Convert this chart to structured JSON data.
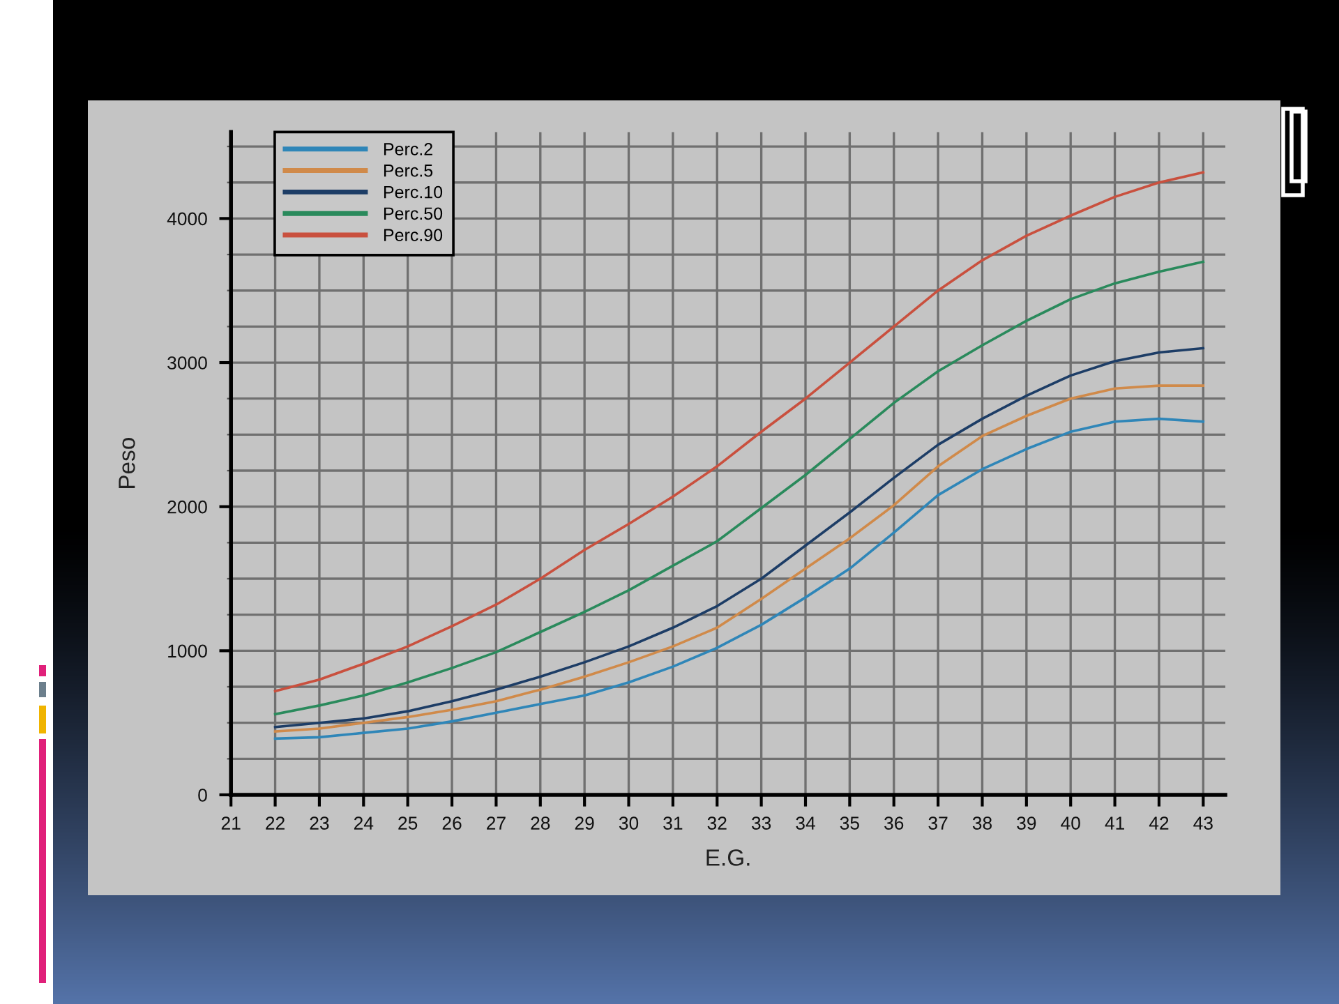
{
  "chart_data": {
    "type": "line",
    "xlabel": "E.G.",
    "ylabel": "Peso",
    "x": [
      22,
      23,
      24,
      25,
      26,
      27,
      28,
      29,
      30,
      31,
      32,
      33,
      34,
      35,
      36,
      37,
      38,
      39,
      40,
      41,
      42,
      43
    ],
    "series": [
      {
        "name": "Perc.2",
        "color": "#2f86b8",
        "values": [
          390,
          400,
          430,
          460,
          510,
          570,
          630,
          690,
          780,
          890,
          1020,
          1180,
          1370,
          1570,
          1820,
          2080,
          2260,
          2400,
          2520,
          2590,
          2610,
          2590
        ]
      },
      {
        "name": "Perc.5",
        "color": "#d08a4a",
        "values": [
          440,
          460,
          500,
          540,
          590,
          650,
          730,
          820,
          920,
          1030,
          1160,
          1360,
          1570,
          1780,
          2010,
          2280,
          2490,
          2630,
          2750,
          2820,
          2840,
          2840
        ]
      },
      {
        "name": "Perc.10",
        "color": "#1d3d66",
        "values": [
          470,
          500,
          530,
          580,
          650,
          730,
          820,
          920,
          1030,
          1160,
          1310,
          1500,
          1730,
          1960,
          2200,
          2430,
          2610,
          2770,
          2910,
          3010,
          3070,
          3100
        ]
      },
      {
        "name": "Perc.50",
        "color": "#2a8a5c",
        "values": [
          560,
          620,
          690,
          780,
          880,
          990,
          1130,
          1270,
          1420,
          1590,
          1760,
          1990,
          2220,
          2470,
          2720,
          2940,
          3120,
          3290,
          3440,
          3550,
          3630,
          3700
        ]
      },
      {
        "name": "Perc.90",
        "color": "#c9503e",
        "values": [
          720,
          800,
          910,
          1030,
          1170,
          1320,
          1500,
          1700,
          1880,
          2070,
          2280,
          2520,
          2750,
          3000,
          3250,
          3500,
          3710,
          3880,
          4020,
          4150,
          4250,
          4320
        ]
      }
    ],
    "xlim": [
      21,
      43.5
    ],
    "xticks": [
      21,
      22,
      23,
      24,
      25,
      26,
      27,
      28,
      29,
      30,
      31,
      32,
      33,
      34,
      35,
      36,
      37,
      38,
      39,
      40,
      41,
      42,
      43
    ],
    "ylim": [
      0,
      4600
    ],
    "yticks": [
      0,
      {
        "value": 250,
        "label": null
      },
      {
        "value": 500,
        "label": null
      },
      {
        "value": 750,
        "label": null
      },
      1000,
      {
        "value": 1250,
        "label": null
      },
      {
        "value": 1500,
        "label": null
      },
      {
        "value": 1750,
        "label": null
      },
      2000,
      {
        "value": 2250,
        "label": null
      },
      {
        "value": 2500,
        "label": null
      },
      {
        "value": 2750,
        "label": null
      },
      3000,
      {
        "value": 3250,
        "label": null
      },
      {
        "value": 3500,
        "label": null
      },
      {
        "value": 3750,
        "label": null
      },
      4000,
      {
        "value": 4250,
        "label": null
      },
      {
        "value": 4500,
        "label": null
      }
    ],
    "grid": true,
    "legend": "top left"
  }
}
